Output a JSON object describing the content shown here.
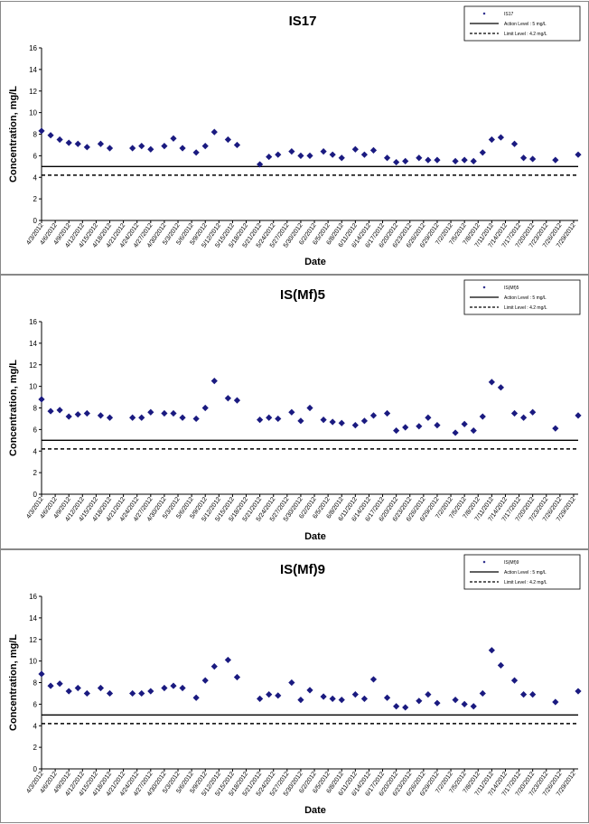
{
  "colors": {
    "marker": "#1a1a80",
    "line": "#000000",
    "border": "#888888"
  },
  "chart_data": [
    {
      "type": "scatter",
      "title": "IS17",
      "xlabel": "Date",
      "ylabel": "Concentration, mg/L",
      "ylim": [
        0,
        16
      ],
      "yticks": [
        "0",
        "2",
        "4",
        "6",
        "8",
        "10",
        "12",
        "14",
        "16"
      ],
      "xticks": [
        "4/3/2012",
        "4/6/2012",
        "4/9/2012",
        "4/12/2012",
        "4/15/2012",
        "4/18/2012",
        "4/21/2012",
        "4/24/2012",
        "4/27/2012",
        "4/30/2012",
        "5/3/2012",
        "5/6/2012",
        "5/9/2012",
        "5/12/2012",
        "5/15/2012",
        "5/18/2012",
        "5/21/2012",
        "5/24/2012",
        "5/27/2012",
        "5/30/2012",
        "6/2/2012",
        "6/5/2012",
        "6/8/2012",
        "6/11/2012",
        "6/14/2012",
        "6/17/2012",
        "6/20/2012",
        "6/23/2012",
        "6/26/2012",
        "6/29/2012",
        "7/2/2012",
        "7/5/2012",
        "7/8/2012",
        "7/11/2012",
        "7/14/2012",
        "7/17/2012",
        "7/20/2012",
        "7/23/2012",
        "7/26/2012",
        "7/29/2012"
      ],
      "xlim": [
        "4/3/2012",
        "7/30/2012"
      ],
      "series": [
        {
          "name": "IS17",
          "marker": "diamond",
          "points": [
            [
              "4/3/2012",
              8.3
            ],
            [
              "4/5/2012",
              7.9
            ],
            [
              "4/7/2012",
              7.5
            ],
            [
              "4/9/2012",
              7.2
            ],
            [
              "4/11/2012",
              7.1
            ],
            [
              "4/13/2012",
              6.8
            ],
            [
              "4/16/2012",
              7.1
            ],
            [
              "4/18/2012",
              6.7
            ],
            [
              "4/23/2012",
              6.7
            ],
            [
              "4/25/2012",
              6.9
            ],
            [
              "4/27/2012",
              6.6
            ],
            [
              "4/30/2012",
              6.9
            ],
            [
              "5/2/2012",
              7.6
            ],
            [
              "5/4/2012",
              6.7
            ],
            [
              "5/7/2012",
              6.3
            ],
            [
              "5/9/2012",
              6.9
            ],
            [
              "5/11/2012",
              8.2
            ],
            [
              "5/14/2012",
              7.5
            ],
            [
              "5/16/2012",
              7.0
            ],
            [
              "5/21/2012",
              5.2
            ],
            [
              "5/23/2012",
              5.9
            ],
            [
              "5/25/2012",
              6.1
            ],
            [
              "5/28/2012",
              6.4
            ],
            [
              "5/30/2012",
              6.0
            ],
            [
              "6/1/2012",
              6.0
            ],
            [
              "6/4/2012",
              6.4
            ],
            [
              "6/6/2012",
              6.1
            ],
            [
              "6/8/2012",
              5.8
            ],
            [
              "6/11/2012",
              6.6
            ],
            [
              "6/13/2012",
              6.1
            ],
            [
              "6/15/2012",
              6.5
            ],
            [
              "6/18/2012",
              5.8
            ],
            [
              "6/20/2012",
              5.4
            ],
            [
              "6/22/2012",
              5.5
            ],
            [
              "6/25/2012",
              5.8
            ],
            [
              "6/27/2012",
              5.6
            ],
            [
              "6/29/2012",
              5.6
            ],
            [
              "7/3/2012",
              5.5
            ],
            [
              "7/5/2012",
              5.6
            ],
            [
              "7/7/2012",
              5.5
            ],
            [
              "7/9/2012",
              6.3
            ],
            [
              "7/11/2012",
              7.5
            ],
            [
              "7/13/2012",
              7.7
            ],
            [
              "7/16/2012",
              7.1
            ],
            [
              "7/18/2012",
              5.8
            ],
            [
              "7/20/2012",
              5.7
            ],
            [
              "7/25/2012",
              5.6
            ],
            [
              "7/30/2012",
              6.1
            ]
          ]
        }
      ],
      "reference_lines": [
        {
          "name": "Action Level : 5 mg/L",
          "value": 5,
          "style": "solid"
        },
        {
          "name": "Limit Level : 4.2 mg/L",
          "value": 4.2,
          "style": "dashed"
        }
      ],
      "legend_position": "top-right",
      "grid": false
    },
    {
      "type": "scatter",
      "title": "IS(Mf)5",
      "xlabel": "Date",
      "ylabel": "Concentration, mg/L",
      "ylim": [
        0,
        16
      ],
      "yticks": [
        "0",
        "2",
        "4",
        "6",
        "8",
        "10",
        "12",
        "14",
        "16"
      ],
      "xticks": [
        "4/3/2012",
        "4/6/2012",
        "4/9/2012",
        "4/12/2012",
        "4/15/2012",
        "4/18/2012",
        "4/21/2012",
        "4/24/2012",
        "4/27/2012",
        "4/30/2012",
        "5/3/2012",
        "5/6/2012",
        "5/9/2012",
        "5/12/2012",
        "5/15/2012",
        "5/18/2012",
        "5/21/2012",
        "5/24/2012",
        "5/27/2012",
        "5/30/2012",
        "6/2/2012",
        "6/5/2012",
        "6/8/2012",
        "6/11/2012",
        "6/14/2012",
        "6/17/2012",
        "6/20/2012",
        "6/23/2012",
        "6/26/2012",
        "6/29/2012",
        "7/2/2012",
        "7/5/2012",
        "7/8/2012",
        "7/11/2012",
        "7/14/2012",
        "7/17/2012",
        "7/20/2012",
        "7/23/2012",
        "7/26/2012",
        "7/29/2012"
      ],
      "xlim": [
        "4/3/2012",
        "7/30/2012"
      ],
      "series": [
        {
          "name": "IS(Mf)5",
          "marker": "diamond",
          "points": [
            [
              "4/3/2012",
              8.8
            ],
            [
              "4/5/2012",
              7.7
            ],
            [
              "4/7/2012",
              7.8
            ],
            [
              "4/9/2012",
              7.2
            ],
            [
              "4/11/2012",
              7.4
            ],
            [
              "4/13/2012",
              7.5
            ],
            [
              "4/16/2012",
              7.3
            ],
            [
              "4/18/2012",
              7.1
            ],
            [
              "4/23/2012",
              7.1
            ],
            [
              "4/25/2012",
              7.1
            ],
            [
              "4/27/2012",
              7.6
            ],
            [
              "4/30/2012",
              7.5
            ],
            [
              "5/2/2012",
              7.5
            ],
            [
              "5/4/2012",
              7.1
            ],
            [
              "5/7/2012",
              7.0
            ],
            [
              "5/9/2012",
              8.0
            ],
            [
              "5/11/2012",
              10.5
            ],
            [
              "5/14/2012",
              8.9
            ],
            [
              "5/16/2012",
              8.7
            ],
            [
              "5/21/2012",
              6.9
            ],
            [
              "5/23/2012",
              7.1
            ],
            [
              "5/25/2012",
              7.0
            ],
            [
              "5/28/2012",
              7.6
            ],
            [
              "5/30/2012",
              6.8
            ],
            [
              "6/1/2012",
              8.0
            ],
            [
              "6/4/2012",
              6.9
            ],
            [
              "6/6/2012",
              6.7
            ],
            [
              "6/8/2012",
              6.6
            ],
            [
              "6/11/2012",
              6.4
            ],
            [
              "6/13/2012",
              6.8
            ],
            [
              "6/15/2012",
              7.3
            ],
            [
              "6/18/2012",
              7.5
            ],
            [
              "6/20/2012",
              5.9
            ],
            [
              "6/22/2012",
              6.2
            ],
            [
              "6/25/2012",
              6.3
            ],
            [
              "6/27/2012",
              7.1
            ],
            [
              "6/29/2012",
              6.4
            ],
            [
              "7/3/2012",
              5.7
            ],
            [
              "7/5/2012",
              6.5
            ],
            [
              "7/7/2012",
              5.9
            ],
            [
              "7/9/2012",
              7.2
            ],
            [
              "7/11/2012",
              10.4
            ],
            [
              "7/13/2012",
              9.9
            ],
            [
              "7/16/2012",
              7.5
            ],
            [
              "7/18/2012",
              7.1
            ],
            [
              "7/20/2012",
              7.6
            ],
            [
              "7/25/2012",
              6.1
            ],
            [
              "7/30/2012",
              7.3
            ]
          ]
        }
      ],
      "reference_lines": [
        {
          "name": "Action Level : 5 mg/L",
          "value": 5,
          "style": "solid"
        },
        {
          "name": "Limit Level : 4.2 mg/L",
          "value": 4.2,
          "style": "dashed"
        }
      ],
      "legend_position": "top-right",
      "grid": false
    },
    {
      "type": "scatter",
      "title": "IS(Mf)9",
      "xlabel": "Date",
      "ylabel": "Concentration, mg/L",
      "ylim": [
        0,
        16
      ],
      "yticks": [
        "0",
        "2",
        "4",
        "6",
        "8",
        "10",
        "12",
        "14",
        "16"
      ],
      "xticks": [
        "4/3/2012",
        "4/6/2012",
        "4/9/2012",
        "4/12/2012",
        "4/15/2012",
        "4/18/2012",
        "4/21/2012",
        "4/24/2012",
        "4/27/2012",
        "4/30/2012",
        "5/3/2012",
        "5/6/2012",
        "5/9/2012",
        "5/12/2012",
        "5/15/2012",
        "5/18/2012",
        "5/21/2012",
        "5/24/2012",
        "5/27/2012",
        "5/30/2012",
        "6/2/2012",
        "6/5/2012",
        "6/8/2012",
        "6/11/2012",
        "6/14/2012",
        "6/17/2012",
        "6/20/2012",
        "6/23/2012",
        "6/26/2012",
        "6/29/2012",
        "7/2/2012",
        "7/5/2012",
        "7/8/2012",
        "7/11/2012",
        "7/14/2012",
        "7/17/2012",
        "7/20/2012",
        "7/23/2012",
        "7/26/2012",
        "7/29/2012"
      ],
      "xlim": [
        "4/3/2012",
        "7/30/2012"
      ],
      "series": [
        {
          "name": "IS(Mf)9",
          "marker": "diamond",
          "points": [
            [
              "4/3/2012",
              8.8
            ],
            [
              "4/5/2012",
              7.7
            ],
            [
              "4/7/2012",
              7.9
            ],
            [
              "4/9/2012",
              7.2
            ],
            [
              "4/11/2012",
              7.5
            ],
            [
              "4/13/2012",
              7.0
            ],
            [
              "4/16/2012",
              7.5
            ],
            [
              "4/18/2012",
              7.0
            ],
            [
              "4/23/2012",
              7.0
            ],
            [
              "4/25/2012",
              7.0
            ],
            [
              "4/27/2012",
              7.2
            ],
            [
              "4/30/2012",
              7.5
            ],
            [
              "5/2/2012",
              7.7
            ],
            [
              "5/4/2012",
              7.5
            ],
            [
              "5/7/2012",
              6.6
            ],
            [
              "5/9/2012",
              8.2
            ],
            [
              "5/11/2012",
              9.5
            ],
            [
              "5/14/2012",
              10.1
            ],
            [
              "5/16/2012",
              8.5
            ],
            [
              "5/21/2012",
              6.5
            ],
            [
              "5/23/2012",
              6.9
            ],
            [
              "5/25/2012",
              6.8
            ],
            [
              "5/28/2012",
              8.0
            ],
            [
              "5/30/2012",
              6.4
            ],
            [
              "6/1/2012",
              7.3
            ],
            [
              "6/4/2012",
              6.7
            ],
            [
              "6/6/2012",
              6.5
            ],
            [
              "6/8/2012",
              6.4
            ],
            [
              "6/11/2012",
              6.9
            ],
            [
              "6/13/2012",
              6.5
            ],
            [
              "6/15/2012",
              8.3
            ],
            [
              "6/18/2012",
              6.6
            ],
            [
              "6/20/2012",
              5.8
            ],
            [
              "6/22/2012",
              5.7
            ],
            [
              "6/25/2012",
              6.3
            ],
            [
              "6/27/2012",
              6.9
            ],
            [
              "6/29/2012",
              6.1
            ],
            [
              "7/3/2012",
              6.4
            ],
            [
              "7/5/2012",
              6.0
            ],
            [
              "7/7/2012",
              5.8
            ],
            [
              "7/9/2012",
              7.0
            ],
            [
              "7/11/2012",
              11.0
            ],
            [
              "7/13/2012",
              9.6
            ],
            [
              "7/16/2012",
              8.2
            ],
            [
              "7/18/2012",
              6.9
            ],
            [
              "7/20/2012",
              6.9
            ],
            [
              "7/25/2012",
              6.2
            ],
            [
              "7/30/2012",
              7.2
            ]
          ]
        }
      ],
      "reference_lines": [
        {
          "name": "Action Level : 5 mg/L",
          "value": 5,
          "style": "solid"
        },
        {
          "name": "Limit Level : 4.2 mg/L",
          "value": 4.2,
          "style": "dashed"
        }
      ],
      "legend_position": "top-right",
      "grid": false
    }
  ]
}
